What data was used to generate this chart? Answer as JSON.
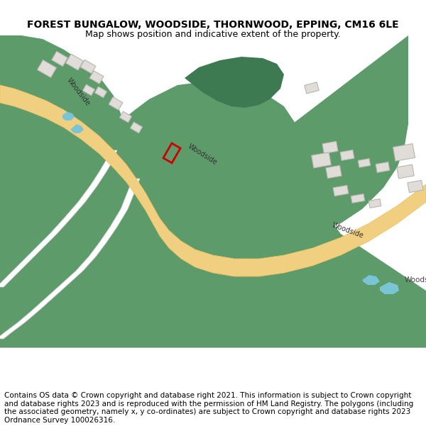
{
  "title": "FOREST BUNGALOW, WOODSIDE, THORNWOOD, EPPING, CM16 6LE",
  "subtitle": "Map shows position and indicative extent of the property.",
  "footer": "Contains OS data © Crown copyright and database right 2021. This information is subject to Crown copyright and database rights 2023 and is reproduced with the permission of HM Land Registry. The polygons (including the associated geometry, namely x, y co-ordinates) are subject to Crown copyright and database rights 2023 Ordnance Survey 100026316.",
  "bg_color": "#ffffff",
  "map_bg": "#f0ede8",
  "green_color": "#5d9b6b",
  "road_color": "#f0d080",
  "road_border": "#e8c060",
  "white_road": "#ffffff",
  "building_color": "#e8e4de",
  "building_border": "#c8c4be",
  "water_color": "#7ac5d5",
  "dark_green": "#3d7a52",
  "red_outline": "#cc0000",
  "title_fontsize": 10,
  "subtitle_fontsize": 9,
  "footer_fontsize": 7.5
}
